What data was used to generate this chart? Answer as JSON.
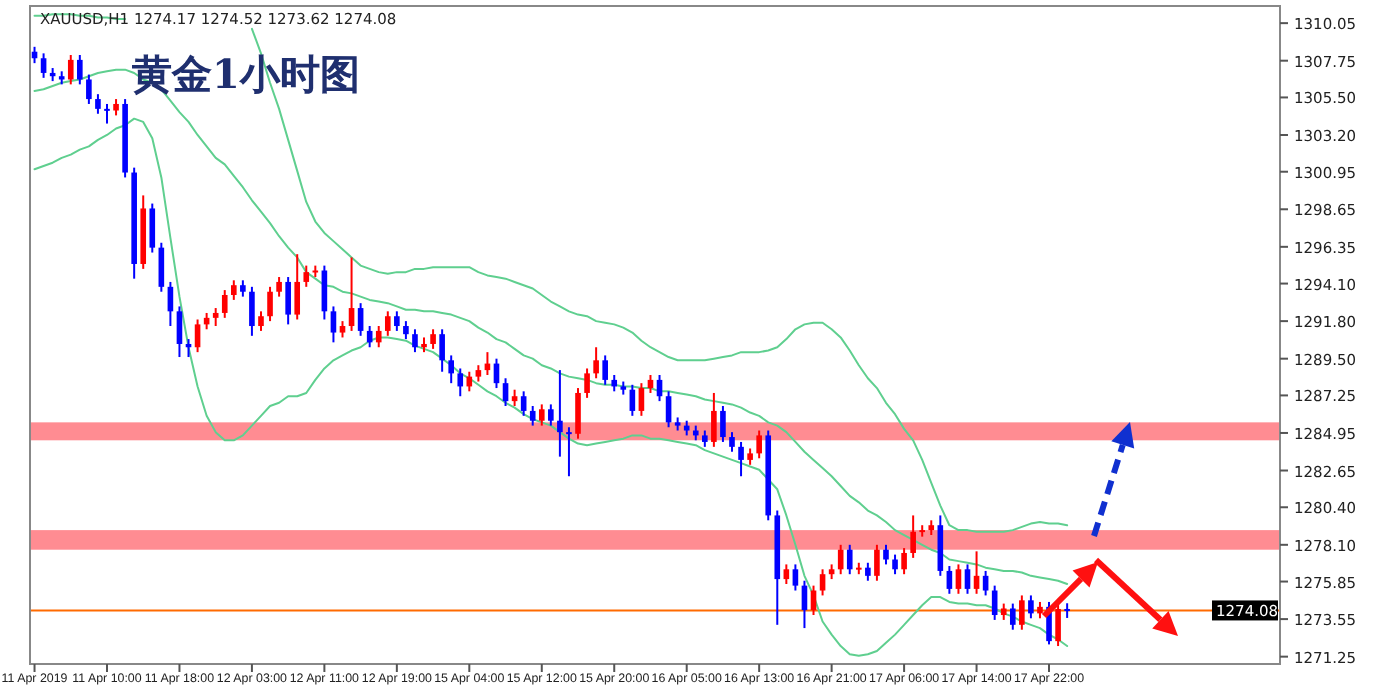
{
  "chart_data": {
    "type": "candlestick",
    "title": "黄金1小时图",
    "subtitle": "XAUUSD,H1 1274.17 1274.52 1273.62 1274.08",
    "categories": [
      "11 Apr 2019",
      null,
      null,
      null,
      null,
      null,
      null,
      null,
      "11 Apr 10:00",
      null,
      null,
      null,
      null,
      null,
      null,
      null,
      "11 Apr 18:00",
      null,
      null,
      null,
      null,
      null,
      null,
      null,
      "12 Apr 03:00",
      null,
      null,
      null,
      null,
      null,
      null,
      null,
      "12 Apr 11:00",
      null,
      null,
      null,
      null,
      null,
      null,
      null,
      "12 Apr 19:00",
      null,
      null,
      null,
      null,
      null,
      null,
      null,
      "15 Apr 04:00",
      null,
      null,
      null,
      null,
      null,
      null,
      null,
      "15 Apr 12:00",
      null,
      null,
      null,
      null,
      null,
      null,
      null,
      "15 Apr 20:00",
      null,
      null,
      null,
      null,
      null,
      null,
      null,
      "16 Apr 05:00",
      null,
      null,
      null,
      null,
      null,
      null,
      null,
      "16 Apr 13:00",
      null,
      null,
      null,
      null,
      null,
      null,
      null,
      "16 Apr 21:00",
      null,
      null,
      null,
      null,
      null,
      null,
      null,
      "17 Apr 06:00",
      null,
      null,
      null,
      null,
      null,
      null,
      null,
      "17 Apr 14:00",
      null,
      null,
      null,
      null,
      null,
      null,
      null,
      "17 Apr 22:00",
      null,
      null,
      null,
      null,
      null,
      null,
      null,
      null,
      null,
      null,
      null,
      null,
      null,
      null,
      null,
      null,
      null,
      null,
      null,
      null,
      null,
      null,
      null,
      null,
      null
    ],
    "ohlc": [
      [
        1308.3,
        1308.6,
        1307.6,
        1307.9
      ],
      [
        1307.9,
        1308.2,
        1306.7,
        1307.0
      ],
      [
        1307.0,
        1307.3,
        1306.5,
        1306.8
      ],
      [
        1306.8,
        1307.1,
        1306.3,
        1306.6
      ],
      [
        1306.6,
        1308.1,
        1306.3,
        1307.8
      ],
      [
        1307.8,
        1308.1,
        1306.3,
        1306.6
      ],
      [
        1306.6,
        1306.9,
        1305.1,
        1305.4
      ],
      [
        1305.4,
        1305.7,
        1304.5,
        1304.8
      ],
      [
        1304.8,
        1305.1,
        1303.9,
        1304.7
      ],
      [
        1304.7,
        1305.4,
        1304.4,
        1305.1
      ],
      [
        1305.1,
        1305.4,
        1300.6,
        1300.9
      ],
      [
        1300.9,
        1301.2,
        1294.4,
        1295.3
      ],
      [
        1295.3,
        1299.5,
        1295.0,
        1298.7
      ],
      [
        1298.7,
        1299.0,
        1296.0,
        1296.3
      ],
      [
        1296.3,
        1296.6,
        1293.6,
        1293.9
      ],
      [
        1293.9,
        1294.2,
        1291.5,
        1292.4
      ],
      [
        1292.4,
        1292.7,
        1289.6,
        1290.4
      ],
      [
        1290.4,
        1290.7,
        1289.6,
        1290.2
      ],
      [
        1290.2,
        1291.9,
        1289.9,
        1291.6
      ],
      [
        1291.6,
        1292.3,
        1291.3,
        1292.0
      ],
      [
        1292.0,
        1292.6,
        1291.5,
        1292.3
      ],
      [
        1292.3,
        1293.7,
        1292.0,
        1293.4
      ],
      [
        1293.4,
        1294.3,
        1293.1,
        1294.0
      ],
      [
        1294.0,
        1294.3,
        1293.3,
        1293.6
      ],
      [
        1293.6,
        1293.9,
        1290.9,
        1291.5
      ],
      [
        1291.5,
        1292.4,
        1291.2,
        1292.1
      ],
      [
        1292.1,
        1293.9,
        1291.8,
        1293.6
      ],
      [
        1293.6,
        1294.5,
        1293.3,
        1294.2
      ],
      [
        1294.2,
        1294.5,
        1291.6,
        1292.2
      ],
      [
        1292.2,
        1295.9,
        1291.9,
        1294.2
      ],
      [
        1294.2,
        1295.2,
        1293.9,
        1294.8
      ],
      [
        1294.8,
        1295.2,
        1294.5,
        1294.9
      ],
      [
        1294.9,
        1295.2,
        1291.9,
        1292.4
      ],
      [
        1292.4,
        1292.7,
        1290.5,
        1291.1
      ],
      [
        1291.1,
        1291.8,
        1290.8,
        1291.5
      ],
      [
        1291.5,
        1295.7,
        1291.2,
        1292.6
      ],
      [
        1292.6,
        1292.9,
        1290.9,
        1291.2
      ],
      [
        1291.2,
        1291.5,
        1290.2,
        1290.5
      ],
      [
        1290.5,
        1291.5,
        1290.2,
        1291.2
      ],
      [
        1291.2,
        1292.4,
        1290.9,
        1292.1
      ],
      [
        1292.1,
        1292.4,
        1291.2,
        1291.5
      ],
      [
        1291.5,
        1291.8,
        1290.7,
        1291.0
      ],
      [
        1291.0,
        1291.3,
        1289.9,
        1290.2
      ],
      [
        1290.2,
        1290.8,
        1289.9,
        1290.4
      ],
      [
        1290.4,
        1291.3,
        1290.1,
        1291.0
      ],
      [
        1291.0,
        1291.3,
        1288.7,
        1289.4
      ],
      [
        1289.4,
        1289.7,
        1288.0,
        1288.6
      ],
      [
        1288.6,
        1288.9,
        1287.2,
        1287.8
      ],
      [
        1287.8,
        1288.7,
        1287.5,
        1288.4
      ],
      [
        1288.4,
        1289.1,
        1288.1,
        1288.8
      ],
      [
        1288.8,
        1289.9,
        1288.5,
        1289.2
      ],
      [
        1289.2,
        1289.5,
        1287.7,
        1288.0
      ],
      [
        1288.0,
        1288.3,
        1286.6,
        1286.9
      ],
      [
        1286.9,
        1287.6,
        1286.6,
        1287.2
      ],
      [
        1287.2,
        1287.5,
        1286.0,
        1286.3
      ],
      [
        1286.3,
        1286.6,
        1285.4,
        1285.7
      ],
      [
        1285.7,
        1286.7,
        1285.4,
        1286.4
      ],
      [
        1286.4,
        1286.7,
        1285.4,
        1285.7
      ],
      [
        1285.7,
        1288.8,
        1283.5,
        1285.0
      ],
      [
        1285.0,
        1285.3,
        1282.3,
        1284.9
      ],
      [
        1284.9,
        1287.7,
        1284.6,
        1287.4
      ],
      [
        1287.4,
        1288.9,
        1287.1,
        1288.6
      ],
      [
        1288.6,
        1290.2,
        1288.3,
        1289.4
      ],
      [
        1289.4,
        1289.7,
        1287.9,
        1288.2
      ],
      [
        1288.2,
        1288.5,
        1287.5,
        1287.8
      ],
      [
        1287.8,
        1288.1,
        1287.3,
        1287.6
      ],
      [
        1287.6,
        1287.9,
        1286.0,
        1286.3
      ],
      [
        1286.3,
        1288.0,
        1286.0,
        1287.7
      ],
      [
        1287.7,
        1288.5,
        1287.4,
        1288.2
      ],
      [
        1288.2,
        1288.5,
        1286.9,
        1287.2
      ],
      [
        1287.2,
        1287.5,
        1285.3,
        1285.6
      ],
      [
        1285.6,
        1285.9,
        1285.1,
        1285.4
      ],
      [
        1285.4,
        1285.7,
        1284.8,
        1285.1
      ],
      [
        1285.1,
        1285.4,
        1284.5,
        1284.8
      ],
      [
        1284.8,
        1285.1,
        1284.1,
        1284.4
      ],
      [
        1284.4,
        1287.4,
        1284.1,
        1286.3
      ],
      [
        1286.3,
        1286.6,
        1284.4,
        1284.7
      ],
      [
        1284.7,
        1285.0,
        1283.8,
        1284.1
      ],
      [
        1284.1,
        1284.4,
        1282.3,
        1283.3
      ],
      [
        1283.3,
        1284.0,
        1283.0,
        1283.7
      ],
      [
        1283.7,
        1285.1,
        1283.4,
        1284.8
      ],
      [
        1284.8,
        1285.1,
        1279.6,
        1279.9
      ],
      [
        1279.9,
        1280.2,
        1273.2,
        1276.0
      ],
      [
        1276.0,
        1276.9,
        1275.7,
        1276.6
      ],
      [
        1276.6,
        1276.9,
        1275.3,
        1275.6
      ],
      [
        1275.6,
        1275.9,
        1273.0,
        1274.1
      ],
      [
        1274.1,
        1275.6,
        1273.8,
        1275.3
      ],
      [
        1275.3,
        1276.6,
        1275.0,
        1276.3
      ],
      [
        1276.3,
        1276.9,
        1276.0,
        1276.6
      ],
      [
        1276.6,
        1278.1,
        1276.3,
        1277.8
      ],
      [
        1277.8,
        1278.1,
        1276.3,
        1276.6
      ],
      [
        1276.6,
        1277.0,
        1276.3,
        1276.7
      ],
      [
        1276.7,
        1277.0,
        1275.9,
        1276.2
      ],
      [
        1276.2,
        1278.1,
        1275.9,
        1277.8
      ],
      [
        1277.8,
        1278.1,
        1276.9,
        1277.2
      ],
      [
        1277.2,
        1277.5,
        1276.3,
        1276.6
      ],
      [
        1276.6,
        1277.9,
        1276.3,
        1277.6
      ],
      [
        1277.6,
        1279.9,
        1277.3,
        1278.9
      ],
      [
        1278.9,
        1279.3,
        1278.6,
        1279.0
      ],
      [
        1279.0,
        1279.6,
        1278.7,
        1279.3
      ],
      [
        1279.3,
        1279.9,
        1276.2,
        1276.5
      ],
      [
        1276.5,
        1276.8,
        1275.1,
        1275.4
      ],
      [
        1275.4,
        1276.9,
        1275.1,
        1276.6
      ],
      [
        1276.6,
        1276.9,
        1275.1,
        1275.4
      ],
      [
        1275.4,
        1277.7,
        1275.1,
        1276.2
      ],
      [
        1276.2,
        1276.5,
        1275.0,
        1275.3
      ],
      [
        1275.3,
        1275.6,
        1273.5,
        1273.8
      ],
      [
        1273.8,
        1274.5,
        1273.5,
        1274.2
      ],
      [
        1274.2,
        1274.5,
        1272.9,
        1273.2
      ],
      [
        1273.2,
        1275.0,
        1272.9,
        1274.7
      ],
      [
        1274.7,
        1275.0,
        1273.6,
        1273.9
      ],
      [
        1273.9,
        1274.6,
        1273.6,
        1274.3
      ],
      [
        1274.3,
        1274.6,
        1272.0,
        1272.2
      ],
      [
        1272.2,
        1274.5,
        1271.9,
        1274.17
      ],
      [
        1274.17,
        1274.52,
        1273.62,
        1274.08
      ],
      null,
      null,
      null,
      null,
      null,
      null,
      null,
      null,
      null,
      null,
      null,
      null,
      null,
      null,
      null,
      null,
      null,
      null,
      null,
      null,
      null,
      null,
      null
    ],
    "colors": [
      "#0000ff",
      "#0000ff",
      "#0000ff",
      "#0000ff",
      "#ff0000",
      "#0000ff",
      "#0000ff",
      "#0000ff",
      "#0000ff",
      "#ff0000",
      "#0000ff",
      "#0000ff",
      "#ff0000",
      "#0000ff",
      "#0000ff",
      "#0000ff",
      "#0000ff",
      "#0000ff",
      "#ff0000",
      "#ff0000",
      "#ff0000",
      "#ff0000",
      "#ff0000",
      "#0000ff",
      "#0000ff",
      "#ff0000",
      "#ff0000",
      "#ff0000",
      "#0000ff",
      "#ff0000",
      "#ff0000",
      "#ff0000",
      "#0000ff",
      "#0000ff",
      "#ff0000",
      "#ff0000",
      "#0000ff",
      "#0000ff",
      "#ff0000",
      "#ff0000",
      "#0000ff",
      "#0000ff",
      "#0000ff",
      "#ff0000",
      "#ff0000",
      "#0000ff",
      "#0000ff",
      "#0000ff",
      "#ff0000",
      "#ff0000",
      "#ff0000",
      "#0000ff",
      "#0000ff",
      "#ff0000",
      "#0000ff",
      "#0000ff",
      "#ff0000",
      "#0000ff",
      "#0000ff",
      "#0000ff",
      "#ff0000",
      "#ff0000",
      "#ff0000",
      "#0000ff",
      "#0000ff",
      "#0000ff",
      "#0000ff",
      "#ff0000",
      "#ff0000",
      "#0000ff",
      "#0000ff",
      "#0000ff",
      "#0000ff",
      "#0000ff",
      "#0000ff",
      "#ff0000",
      "#0000ff",
      "#0000ff",
      "#0000ff",
      "#ff0000",
      "#ff0000",
      "#0000ff",
      "#0000ff",
      "#ff0000",
      "#0000ff",
      "#0000ff",
      "#ff0000",
      "#ff0000",
      "#ff0000",
      "#ff0000",
      "#0000ff",
      "#ff0000",
      "#0000ff",
      "#ff0000",
      "#0000ff",
      "#0000ff",
      "#ff0000",
      "#ff0000",
      "#ff0000",
      "#ff0000",
      "#0000ff",
      "#0000ff",
      "#ff0000",
      "#0000ff",
      "#ff0000",
      "#0000ff",
      "#0000ff",
      "#ff0000",
      "#0000ff",
      "#ff0000",
      "#0000ff",
      "#ff0000",
      "#0000ff",
      "#ff0000",
      "#0000ff",
      null,
      null,
      null,
      null,
      null,
      null,
      null,
      null,
      null,
      null,
      null,
      null,
      null,
      null,
      null,
      null,
      null,
      null,
      null,
      null,
      null,
      null,
      null
    ],
    "series": [
      {
        "type": "line",
        "color": "#5fcf8f",
        "values": [
          1310.5,
          1310.5,
          1310.6,
          1310.6,
          1310.6,
          1310.5,
          1310.5,
          1310.4,
          1310.4,
          1310.3,
          1310.3,
          null,
          null,
          null,
          null,
          null,
          null,
          null,
          null,
          null,
          null,
          null,
          null,
          null,
          1309.7,
          1308.2,
          1306.4,
          1304.8,
          1302.9,
          1301.0,
          1299.1,
          1297.9,
          1297.2,
          1296.7,
          1296.2,
          1295.7,
          1295.2,
          1295.0,
          1294.8,
          1294.7,
          1294.8,
          1294.8,
          1295.0,
          1295.0,
          1295.1,
          1295.1,
          1295.1,
          1295.1,
          1295.1,
          1294.8,
          1294.6,
          1294.5,
          1294.4,
          1294.2,
          1294.0,
          1293.8,
          1293.4,
          1293.0,
          1292.7,
          1292.4,
          1292.2,
          1292.1,
          1291.8,
          1291.7,
          1291.6,
          1291.4,
          1291.1,
          1290.6,
          1290.2,
          1289.9,
          1289.6,
          1289.4,
          1289.4,
          1289.4,
          1289.4,
          1289.5,
          1289.6,
          1289.7,
          1289.9,
          1289.9,
          1289.9,
          1290.0,
          1290.2,
          1290.7,
          1291.3,
          1291.6,
          1291.7,
          1291.7,
          1291.3,
          1290.8,
          1290.0,
          1289.1,
          1288.3,
          1287.7,
          1286.8,
          1286.1,
          1285.2,
          1284.5,
          1283.3,
          1281.9,
          1280.5,
          1279.3,
          1279.0,
          1279.0,
          1278.9,
          1278.9,
          1278.9,
          1278.9,
          1279.0,
          1279.2,
          1279.4,
          1279.5,
          1279.4,
          1279.4,
          1279.3,
          null,
          null,
          null,
          null,
          null,
          null,
          null,
          null,
          null,
          null,
          null,
          null,
          null,
          null,
          null,
          null,
          null,
          null,
          null,
          null,
          null,
          null,
          null
        ]
      },
      {
        "type": "line",
        "color": "#5fcf8f",
        "values": [
          1305.9,
          1306.0,
          1306.2,
          1306.4,
          1306.5,
          1306.6,
          1306.8,
          1307.0,
          1307.1,
          1307.2,
          1307.2,
          1307.0,
          1306.6,
          1306.4,
          1306.0,
          1305.3,
          1304.6,
          1304.0,
          1303.2,
          1302.5,
          1301.8,
          1301.4,
          1300.7,
          1300.0,
          1299.2,
          1298.5,
          1297.8,
          1297.0,
          1296.3,
          1295.7,
          1294.8,
          1294.4,
          1294.0,
          1293.9,
          1293.6,
          1293.5,
          1293.3,
          1293.1,
          1293.0,
          1292.9,
          1292.7,
          1292.5,
          1292.5,
          1292.4,
          1292.4,
          1292.3,
          1292.2,
          1292.0,
          1291.8,
          1291.4,
          1291.1,
          1290.7,
          1290.5,
          1290.1,
          1289.7,
          1289.5,
          1289.1,
          1288.9,
          1288.6,
          1288.4,
          1288.3,
          1288.2,
          1288.0,
          1287.9,
          1287.9,
          1287.8,
          1287.8,
          1287.7,
          1287.7,
          1287.5,
          1287.5,
          1287.4,
          1287.3,
          1287.2,
          1287.0,
          1286.9,
          1286.8,
          1286.7,
          1286.5,
          1286.2,
          1286.0,
          1285.6,
          1285.4,
          1285.0,
          1284.4,
          1283.8,
          1283.3,
          1282.8,
          1282.3,
          1281.7,
          1281.1,
          1280.7,
          1280.2,
          1279.9,
          1279.5,
          1279.0,
          1278.7,
          1278.4,
          1278.1,
          1277.8,
          1277.6,
          1277.2,
          1277.1,
          1277.0,
          1276.9,
          1276.7,
          1276.6,
          1276.5,
          1276.5,
          1276.4,
          1276.2,
          1276.1,
          1276.0,
          1275.9,
          1275.7,
          null,
          null,
          null,
          null,
          null,
          null,
          null,
          null,
          null,
          null,
          null,
          null,
          null,
          null,
          null,
          null,
          null,
          null,
          null,
          null,
          null,
          null,
          null
        ]
      },
      {
        "type": "line",
        "color": "#5fcf8f",
        "values": [
          1301.1,
          1301.3,
          1301.5,
          1301.8,
          1302.0,
          1302.3,
          1302.5,
          1302.9,
          1303.2,
          1303.6,
          1303.8,
          1304.2,
          1304.0,
          1303.0,
          1300.6,
          1296.9,
          1293.3,
          1290.2,
          1287.8,
          1286.0,
          1285.0,
          1284.5,
          1284.5,
          1284.8,
          1285.4,
          1286.0,
          1286.6,
          1286.8,
          1287.2,
          1287.2,
          1287.4,
          1288.2,
          1288.9,
          1289.4,
          1289.7,
          1290.0,
          1290.2,
          1290.6,
          1290.8,
          1290.8,
          1290.7,
          1290.6,
          1290.3,
          1290.1,
          1289.9,
          1289.5,
          1289.1,
          1288.6,
          1288.3,
          1287.9,
          1287.5,
          1287.2,
          1286.8,
          1286.5,
          1286.1,
          1285.8,
          1285.6,
          1285.4,
          1285.0,
          1284.6,
          1284.3,
          1284.2,
          1284.3,
          1284.4,
          1284.5,
          1284.6,
          1284.8,
          1284.8,
          1284.6,
          1284.6,
          1284.5,
          1284.4,
          1284.3,
          1284.2,
          1283.9,
          1283.7,
          1283.5,
          1283.3,
          1283.1,
          1282.9,
          1282.7,
          1282.1,
          1281.5,
          1279.9,
          1278.1,
          1276.2,
          1275.0,
          1273.4,
          1272.6,
          1271.9,
          1271.4,
          1271.3,
          1271.4,
          1271.6,
          1272.1,
          1272.6,
          1273.2,
          1273.8,
          1274.4,
          1274.9,
          1274.9,
          1274.6,
          1274.5,
          1274.5,
          1274.4,
          1274.4,
          1274.2,
          1273.9,
          1273.7,
          1273.4,
          1273.2,
          1273.0,
          1272.6,
          1272.3,
          1271.9,
          null,
          null,
          null,
          null,
          null,
          null,
          null,
          null,
          null,
          null,
          null,
          null,
          null,
          null,
          null,
          null,
          null,
          null,
          null,
          null,
          null,
          null,
          null
        ]
      }
    ],
    "ylim": [
      1270.8,
      1311.1
    ],
    "yticks": [
      {
        "value": 1310.05,
        "label": "1310.05"
      },
      {
        "value": 1307.75,
        "label": "1307.75"
      },
      {
        "value": 1305.5,
        "label": "1305.50"
      },
      {
        "value": 1303.2,
        "label": "1303.20"
      },
      {
        "value": 1300.95,
        "label": "1300.95"
      },
      {
        "value": 1298.65,
        "label": "1298.65"
      },
      {
        "value": 1296.35,
        "label": "1296.35"
      },
      {
        "value": 1294.1,
        "label": "1294.10"
      },
      {
        "value": 1291.8,
        "label": "1291.80"
      },
      {
        "value": 1289.5,
        "label": "1289.50"
      },
      {
        "value": 1287.25,
        "label": "1287.25"
      },
      {
        "value": 1284.95,
        "label": "1284.95"
      },
      {
        "value": 1282.65,
        "label": "1282.65"
      },
      {
        "value": 1280.4,
        "label": "1280.40"
      },
      {
        "value": 1278.1,
        "label": "1278.10"
      },
      {
        "value": 1275.85,
        "label": "1275.85"
      },
      {
        "value": 1273.55,
        "label": "1273.55"
      },
      {
        "value": 1271.25,
        "label": "1271.25"
      }
    ],
    "ref_lines": [
      {
        "axis": "y",
        "value": 1274.08,
        "label": "1274.08",
        "color": "#ff6a00"
      }
    ],
    "bands": [
      {
        "axis": "y",
        "from": 1284.5,
        "to": 1285.6,
        "color": "#ff7f86"
      },
      {
        "axis": "y",
        "from": 1277.8,
        "to": 1279.0,
        "color": "#ff7f86"
      }
    ]
  }
}
